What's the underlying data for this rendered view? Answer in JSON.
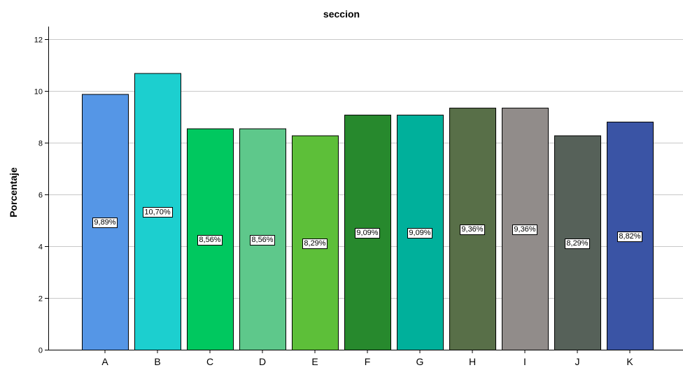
{
  "chart_data": {
    "type": "bar",
    "title": "seccion",
    "xlabel": "",
    "ylabel": "Porcentaje",
    "ylim": [
      0,
      12.5
    ],
    "yticks": [
      0,
      2,
      4,
      6,
      8,
      10,
      12
    ],
    "grid": true,
    "categories": [
      "A",
      "B",
      "C",
      "D",
      "E",
      "F",
      "G",
      "H",
      "I",
      "J",
      "K"
    ],
    "values": [
      9.89,
      10.7,
      8.56,
      8.56,
      8.29,
      9.09,
      9.09,
      9.36,
      9.36,
      8.29,
      8.82
    ],
    "data_labels": [
      "9,89%",
      "10,70%",
      "8,56%",
      "8,56%",
      "8,29%",
      "9,09%",
      "9,09%",
      "9,36%",
      "9,36%",
      "8,29%",
      "8,82%"
    ],
    "colors": [
      "#5596e6",
      "#1ccfcf",
      "#00c85f",
      "#5ec88b",
      "#5dbf39",
      "#27892d",
      "#00b09b",
      "#586f48",
      "#918c8a",
      "#566159",
      "#3a54a5"
    ]
  }
}
